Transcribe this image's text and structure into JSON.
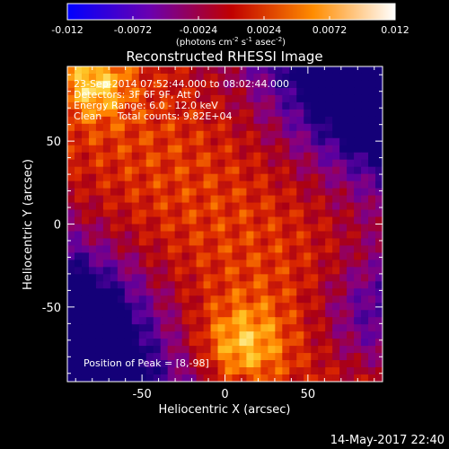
{
  "chart_data": {
    "type": "heatmap",
    "title": "Reconstructed RHESSI Image",
    "xlabel": "Heliocentric X (arcsec)",
    "ylabel": "Heliocentric Y (arcsec)",
    "xlim": [
      -95,
      95
    ],
    "ylim": [
      -95,
      95
    ],
    "x_ticks": [
      "-50",
      "0",
      "50"
    ],
    "y_ticks": [
      "50",
      "0",
      "-50"
    ],
    "x_tick_values": [
      -50,
      0,
      50
    ],
    "y_tick_values": [
      50,
      0,
      -50
    ],
    "colorbar": {
      "range": [
        -0.012,
        0.012
      ],
      "tick_labels": [
        "-0.012",
        "-0.0072",
        "-0.0024",
        "0.0024",
        "0.0072",
        "0.012"
      ],
      "tick_values": [
        -0.012,
        -0.0072,
        -0.0024,
        0.0024,
        0.0072,
        0.012
      ],
      "unit_label": "(photons cm",
      "unit_exp1": "-2",
      "unit_mid": " s",
      "unit_exp2": "-1",
      "unit_mid2": " asec",
      "unit_exp3": "-2",
      "unit_end": ")"
    },
    "annotations": {
      "time": "23-Sep-2014 07:52:44.000 to 08:02:44.000",
      "detectors": "Detectors: 3F 6F 9F, Att 0",
      "energy": "Energy Range: 6.0 - 12.0 keV",
      "clean": "Clean     Total counts: 9.82E+04",
      "peak": "Position of Peak = [8,-98]"
    },
    "grid": false
  },
  "footer": {
    "timestamp": "14-May-2017 22:40"
  },
  "colors": {
    "background": "#000000",
    "foreground": "#ffffff"
  }
}
